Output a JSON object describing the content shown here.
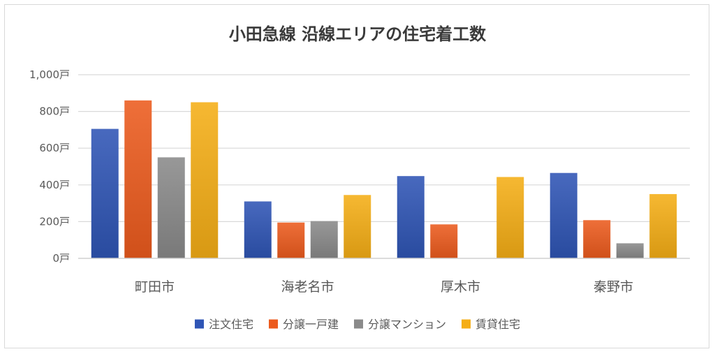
{
  "chart_data": {
    "type": "bar",
    "title": "小田急線 沿線エリアの住宅着工数",
    "categories": [
      "町田市",
      "海老名市",
      "厚木市",
      "秦野市"
    ],
    "series": [
      {
        "name": "注文住宅",
        "values": [
          705,
          310,
          448,
          465
        ],
        "color": "#2f55b5"
      },
      {
        "name": "分譲一戸建",
        "values": [
          860,
          195,
          185,
          208
        ],
        "color": "#ec5b1e"
      },
      {
        "name": "分譲マンション",
        "values": [
          550,
          203,
          0,
          82
        ],
        "color": "#8a8a8a"
      },
      {
        "name": "賃貸住宅",
        "values": [
          850,
          345,
          443,
          350
        ],
        "color": "#f5ae16"
      }
    ],
    "ylim": [
      0,
      1000
    ],
    "yticks": [
      0,
      200,
      400,
      600,
      800,
      1000
    ],
    "ytick_labels": [
      "0戸",
      "200戸",
      "400戸",
      "600戸",
      "800戸",
      "1,000戸"
    ],
    "grid": true,
    "legend": "bottom"
  }
}
